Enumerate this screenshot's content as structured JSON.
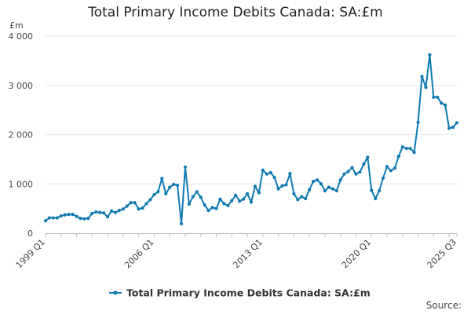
{
  "colors": {
    "series": "#0f7ab3",
    "grid": "#e6e6e6",
    "axis": "#c0c0c0",
    "text": "#444444"
  },
  "source_label": "Source:",
  "chart_data": {
    "type": "line",
    "title": "Total Primary Income Debits Canada: SA:£m",
    "ylabel": "£m",
    "xlabel": "",
    "ylim": [
      0,
      4000
    ],
    "yticks": [
      0,
      1000,
      2000,
      3000,
      4000
    ],
    "ytick_labels": [
      "0",
      "1 000",
      "2 000",
      "3 000",
      "4 000"
    ],
    "xtick_labels": [
      "1999 Q1",
      "2006 Q1",
      "2013 Q1",
      "2020 Q1",
      "2025 Q3"
    ],
    "xtick_index": [
      0,
      28,
      56,
      84,
      106
    ],
    "grid": true,
    "legend": "bottom-center",
    "series": [
      {
        "name": "Total Primary Income Debits Canada: SA:£m",
        "values": [
          250,
          310,
          310,
          310,
          350,
          370,
          380,
          380,
          340,
          300,
          290,
          300,
          400,
          430,
          420,
          410,
          330,
          450,
          420,
          460,
          490,
          550,
          620,
          620,
          490,
          510,
          600,
          680,
          780,
          840,
          1110,
          800,
          930,
          990,
          970,
          190,
          1340,
          590,
          740,
          840,
          730,
          570,
          460,
          520,
          500,
          690,
          600,
          560,
          660,
          770,
          650,
          690,
          800,
          630,
          950,
          820,
          1280,
          1200,
          1230,
          1130,
          900,
          960,
          980,
          1210,
          800,
          680,
          740,
          700,
          880,
          1050,
          1080,
          1000,
          860,
          930,
          900,
          860,
          1080,
          1200,
          1250,
          1330,
          1200,
          1240,
          1400,
          1540,
          870,
          700,
          860,
          1120,
          1350,
          1270,
          1320,
          1560,
          1750,
          1720,
          1720,
          1640,
          2250,
          3180,
          2960,
          3620,
          2760,
          2760,
          2640,
          2600,
          2130,
          2150,
          2240
        ]
      }
    ]
  }
}
